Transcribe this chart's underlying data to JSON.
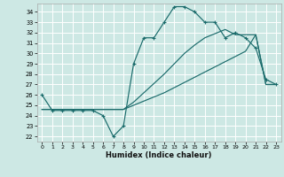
{
  "xlabel": "Humidex (Indice chaleur)",
  "bg_color": "#cde8e4",
  "grid_color": "#ffffff",
  "line_color": "#1a6b6b",
  "xlim": [
    -0.5,
    23.5
  ],
  "ylim": [
    21.5,
    34.8
  ],
  "x_ticks": [
    0,
    1,
    2,
    3,
    4,
    5,
    6,
    7,
    8,
    9,
    10,
    11,
    12,
    13,
    14,
    15,
    16,
    17,
    18,
    19,
    20,
    21,
    22,
    23
  ],
  "y_ticks": [
    22,
    23,
    24,
    25,
    26,
    27,
    28,
    29,
    30,
    31,
    32,
    33,
    34
  ],
  "curve1_x": [
    0,
    1,
    2,
    3,
    4,
    5,
    6,
    7,
    8,
    9,
    10,
    11,
    12,
    13,
    14,
    15,
    16,
    17,
    18,
    19,
    20,
    21,
    22,
    23
  ],
  "curve1_y": [
    26.0,
    24.5,
    24.5,
    24.5,
    24.5,
    24.5,
    24.0,
    22.0,
    23.0,
    29.0,
    31.5,
    31.5,
    33.0,
    34.5,
    34.5,
    34.0,
    33.0,
    33.0,
    31.5,
    32.0,
    31.5,
    30.5,
    27.5,
    27.0
  ],
  "curve2_x": [
    0,
    1,
    2,
    3,
    4,
    5,
    6,
    7,
    8,
    9,
    10,
    11,
    12,
    13,
    14,
    15,
    16,
    17,
    18,
    19,
    20,
    21,
    22,
    23
  ],
  "curve2_y": [
    24.6,
    24.6,
    24.6,
    24.6,
    24.6,
    24.6,
    24.6,
    24.6,
    24.6,
    25.0,
    25.4,
    25.8,
    26.2,
    26.7,
    27.2,
    27.7,
    28.2,
    28.7,
    29.2,
    29.7,
    30.2,
    31.8,
    27.0,
    27.0
  ],
  "curve3_x": [
    0,
    1,
    2,
    3,
    4,
    5,
    6,
    7,
    8,
    9,
    10,
    11,
    12,
    13,
    14,
    15,
    16,
    17,
    18,
    19,
    20,
    21,
    22,
    23
  ],
  "curve3_y": [
    24.6,
    24.6,
    24.6,
    24.6,
    24.6,
    24.6,
    24.6,
    24.6,
    24.6,
    25.3,
    26.2,
    27.1,
    28.0,
    29.0,
    30.0,
    30.8,
    31.5,
    31.9,
    32.3,
    31.8,
    31.8,
    31.8,
    27.0,
    27.0
  ]
}
